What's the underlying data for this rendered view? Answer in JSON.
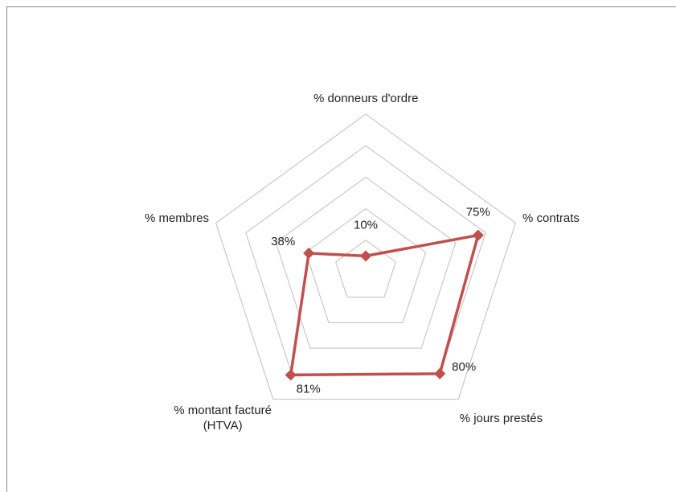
{
  "chart_data": {
    "type": "radar",
    "categories": [
      "% donneurs d'ordre",
      "% contrats",
      "% jours prestés",
      "% montant facturé\n(HTVA)",
      "% membres"
    ],
    "values": [
      10,
      75,
      80,
      81,
      38
    ],
    "value_labels": [
      "10%",
      "75%",
      "80%",
      "81%",
      "38%"
    ],
    "color": "#c0504d",
    "ylim": [
      0,
      100
    ],
    "yticks": [
      0,
      20,
      40,
      60,
      80,
      100
    ],
    "grid": true
  }
}
